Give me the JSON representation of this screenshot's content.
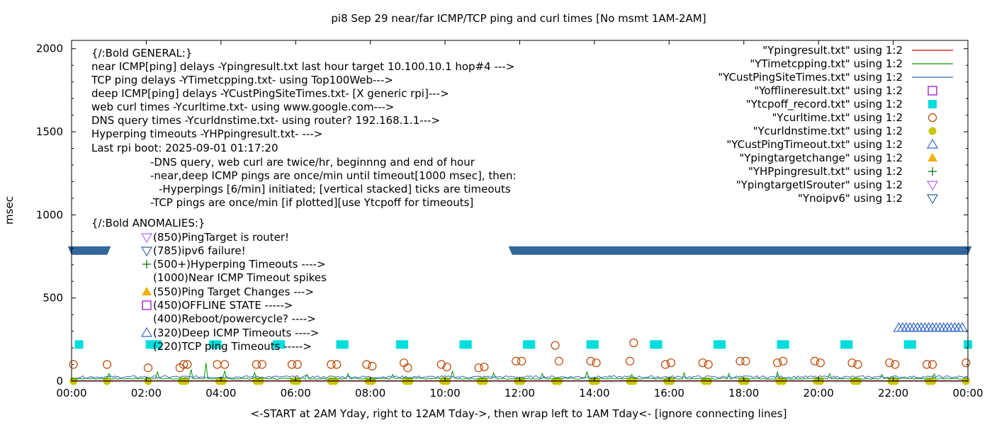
{
  "chart_data": {
    "type": "scatter",
    "title": "pi8 Sep 29  near/far ICMP/TCP ping and curl times [No msmt 1AM-2AM]",
    "xlabel": "<-START at 2AM Yday, right to 12AM Tday->, then wrap left to 1AM Tday<- [ignore connecting lines]",
    "ylabel": "msec",
    "xlim": [
      0,
      24
    ],
    "ylim": [
      0,
      2050
    ],
    "grid": false,
    "legend_position": "top-right",
    "x_ticks": [
      {
        "value": 0,
        "label": "00:00"
      },
      {
        "value": 2,
        "label": "02:00"
      },
      {
        "value": 4,
        "label": "04:00"
      },
      {
        "value": 6,
        "label": "06:00"
      },
      {
        "value": 8,
        "label": "08:00"
      },
      {
        "value": 10,
        "label": "10:00"
      },
      {
        "value": 12,
        "label": "12:00"
      },
      {
        "value": 14,
        "label": "14:00"
      },
      {
        "value": 16,
        "label": "16:00"
      },
      {
        "value": 18,
        "label": "18:00"
      },
      {
        "value": 20,
        "label": "20:00"
      },
      {
        "value": 22,
        "label": "22:00"
      },
      {
        "value": 24,
        "label": "00:00"
      }
    ],
    "y_ticks": [
      {
        "value": 0,
        "label": "0"
      },
      {
        "value": 500,
        "label": "500"
      },
      {
        "value": 1000,
        "label": "1000"
      },
      {
        "value": 1500,
        "label": "1500"
      },
      {
        "value": 2000,
        "label": "2000"
      }
    ],
    "annotation_lines": [
      "{/:Bold GENERAL:}",
      "near ICMP[ping] delays -Ypingresult.txt last hour target 10.100.10.1 hop#4 --->",
      "TCP ping delays -YTimetcpping.txt- using Top100Web--->",
      "deep ICMP[ping] delays -YCustPingSiteTimes.txt- [X generic rpi]--->",
      "web curl times -Ycurltime.txt- using www.google.com--->",
      "DNS query times -Ycurldnstime.txt- using router? 192.168.1.1--->",
      "Hyperping timeouts -YHPpingresult.txt- --->",
      "Last rpi boot: 2025-09-01 01:17:20",
      "-DNS query, web curl are twice/hr, beginnng and end of hour",
      "-near,deep ICMP pings are once/min until timeout[1000 msec], then:",
      "-Hyperpings [6/min] initiated; [vertical stacked] ticks are timeouts",
      "-TCP pings are once/min [if plotted][use Ytcpoff for timeouts]",
      "{/:Bold ANOMALIES:}",
      "(850)PingTarget is router!",
      "(785)ipv6 failure!",
      "(500+)Hyperping Timeouts ---->",
      "(1000)Near ICMP Timeout spikes",
      "(550)Ping Target Changes --->",
      "(450)OFFLINE STATE ----->",
      "(400)Reboot/powercycle? ---->",
      "(320)Deep ICMP Timeouts ---->",
      "(220)TCP ping Timeouts ----->"
    ],
    "series": [
      {
        "name": "\"Ypingresult.txt\" using 1:2",
        "color": "#cc0000",
        "style": "line",
        "baseline_msec": 2
      },
      {
        "name": "\"YTimetcpping.txt\" using 1:2",
        "color": "#009900",
        "style": "line",
        "baseline_msec": 15,
        "spikes": [
          [
            1.0,
            45
          ],
          [
            2.3,
            55
          ],
          [
            3.2,
            70
          ],
          [
            3.6,
            110
          ],
          [
            4.1,
            60
          ],
          [
            4.9,
            50
          ],
          [
            6.3,
            40
          ],
          [
            7.4,
            45
          ],
          [
            8.6,
            40
          ],
          [
            10.2,
            60
          ],
          [
            11.3,
            50
          ],
          [
            12.6,
            45
          ],
          [
            13.8,
            55
          ],
          [
            15.0,
            40
          ],
          [
            16.4,
            50
          ],
          [
            17.6,
            45
          ],
          [
            18.9,
            55
          ],
          [
            20.3,
            45
          ],
          [
            21.7,
            40
          ],
          [
            23.1,
            45
          ]
        ]
      },
      {
        "name": "\"YCustPingSiteTimes.txt\" using 1:2",
        "color": "#3366cc",
        "style": "line",
        "baseline_msec": 25,
        "x_range": [
          0.1,
          24
        ]
      },
      {
        "name": "\"Yofflineresult.txt\" using 1:2",
        "color": "#9900cc",
        "marker": "open-square",
        "points": []
      },
      {
        "name": "\"Ytcpoff_record.txt\" using 1:2",
        "color": "#00dddd",
        "marker": "filled-square",
        "points": [
          [
            0.2,
            220
          ],
          [
            2.1,
            220
          ],
          [
            2.2,
            220
          ],
          [
            2.3,
            220
          ],
          [
            3.8,
            220
          ],
          [
            3.9,
            220
          ],
          [
            5.5,
            220
          ],
          [
            5.6,
            220
          ],
          [
            7.2,
            220
          ],
          [
            7.3,
            220
          ],
          [
            8.8,
            220
          ],
          [
            8.9,
            220
          ],
          [
            10.5,
            220
          ],
          [
            10.6,
            220
          ],
          [
            12.2,
            220
          ],
          [
            12.3,
            220
          ],
          [
            13.9,
            220
          ],
          [
            14.0,
            220
          ],
          [
            15.6,
            220
          ],
          [
            15.7,
            220
          ],
          [
            17.3,
            220
          ],
          [
            17.4,
            220
          ],
          [
            19.0,
            220
          ],
          [
            19.1,
            220
          ],
          [
            20.7,
            220
          ],
          [
            20.8,
            220
          ],
          [
            22.4,
            220
          ],
          [
            22.5,
            220
          ],
          [
            24.0,
            220
          ]
        ]
      },
      {
        "name": "\"Ycurltime.txt\" using 1:2",
        "color": "#bb4400",
        "marker": "open-circle",
        "points": [
          [
            0.05,
            100
          ],
          [
            0.95,
            100
          ],
          [
            2.05,
            80
          ],
          [
            2.9,
            80
          ],
          [
            3.0,
            100
          ],
          [
            3.1,
            100
          ],
          [
            3.9,
            100
          ],
          [
            4.1,
            100
          ],
          [
            4.95,
            100
          ],
          [
            5.1,
            100
          ],
          [
            5.9,
            100
          ],
          [
            6.05,
            100
          ],
          [
            6.95,
            100
          ],
          [
            7.1,
            100
          ],
          [
            7.9,
            100
          ],
          [
            8.05,
            90
          ],
          [
            8.9,
            110
          ],
          [
            9.0,
            80
          ],
          [
            9.9,
            100
          ],
          [
            10.05,
            85
          ],
          [
            10.9,
            80
          ],
          [
            11.05,
            85
          ],
          [
            11.9,
            120
          ],
          [
            12.05,
            120
          ],
          [
            12.95,
            215
          ],
          [
            13.05,
            120
          ],
          [
            13.9,
            120
          ],
          [
            14.05,
            110
          ],
          [
            14.95,
            120
          ],
          [
            15.05,
            230
          ],
          [
            15.9,
            100
          ],
          [
            16.05,
            110
          ],
          [
            16.9,
            110
          ],
          [
            17.05,
            100
          ],
          [
            17.9,
            120
          ],
          [
            18.05,
            120
          ],
          [
            18.9,
            110
          ],
          [
            19.05,
            120
          ],
          [
            19.9,
            120
          ],
          [
            20.05,
            110
          ],
          [
            20.9,
            110
          ],
          [
            21.05,
            100
          ],
          [
            21.9,
            110
          ],
          [
            22.05,
            100
          ],
          [
            22.9,
            100
          ],
          [
            23.05,
            100
          ],
          [
            23.95,
            110
          ]
        ]
      },
      {
        "name": "\"Ycurldnstime.txt\" using 1:2",
        "color": "#c8c800",
        "marker": "filled-circle",
        "points": [
          [
            0.05,
            0
          ],
          [
            0.95,
            0
          ],
          [
            2.05,
            0
          ],
          [
            2.95,
            0
          ],
          [
            3.05,
            0
          ],
          [
            3.95,
            0
          ],
          [
            4.05,
            0
          ],
          [
            4.95,
            0
          ],
          [
            5.05,
            0
          ],
          [
            5.95,
            0
          ],
          [
            6.05,
            0
          ],
          [
            6.95,
            0
          ],
          [
            7.05,
            0
          ],
          [
            7.95,
            0
          ],
          [
            8.05,
            0
          ],
          [
            8.95,
            0
          ],
          [
            9.05,
            0
          ],
          [
            9.95,
            0
          ],
          [
            10.05,
            0
          ],
          [
            10.95,
            0
          ],
          [
            11.05,
            0
          ],
          [
            11.95,
            0
          ],
          [
            12.05,
            0
          ],
          [
            12.95,
            0
          ],
          [
            13.05,
            0
          ],
          [
            13.95,
            0
          ],
          [
            14.05,
            0
          ],
          [
            14.95,
            0
          ],
          [
            15.05,
            0
          ],
          [
            15.95,
            0
          ],
          [
            16.05,
            0
          ],
          [
            16.95,
            0
          ],
          [
            17.05,
            0
          ],
          [
            17.95,
            0
          ],
          [
            18.05,
            0
          ],
          [
            18.95,
            0
          ],
          [
            19.05,
            0
          ],
          [
            19.95,
            0
          ],
          [
            20.05,
            0
          ],
          [
            20.95,
            0
          ],
          [
            21.05,
            0
          ],
          [
            21.95,
            0
          ],
          [
            22.05,
            0
          ],
          [
            22.95,
            0
          ],
          [
            23.05,
            0
          ],
          [
            23.95,
            0
          ]
        ]
      },
      {
        "name": "\"YCustPingTimeout.txt\" using 1:2",
        "color": "#3366cc",
        "marker": "open-triangle-up",
        "points": [
          [
            22.15,
            320
          ],
          [
            22.25,
            320
          ],
          [
            22.35,
            320
          ],
          [
            22.45,
            320
          ],
          [
            22.55,
            320
          ],
          [
            22.65,
            320
          ],
          [
            22.75,
            320
          ],
          [
            22.85,
            320
          ],
          [
            22.95,
            320
          ],
          [
            23.05,
            320
          ],
          [
            23.15,
            320
          ],
          [
            23.25,
            320
          ],
          [
            23.35,
            320
          ],
          [
            23.45,
            320
          ],
          [
            23.55,
            320
          ],
          [
            23.65,
            320
          ],
          [
            23.75,
            320
          ],
          [
            23.85,
            320
          ]
        ]
      },
      {
        "name": "\"Ypingtargetchange\" using 1:2",
        "color": "#f0b000",
        "marker": "filled-triangle-up",
        "points": []
      },
      {
        "name": "\"YHPpingresult.txt\" using 1:2",
        "color": "#006600",
        "marker": "plus",
        "points": []
      },
      {
        "name": "\"YpingtargetISrouter\" using 1:2",
        "color": "#b366ff",
        "marker": "open-triangle-down",
        "points": []
      },
      {
        "name": "\"Ynoipv6\" using 1:2",
        "color": "#336699",
        "marker": "open-triangle-down",
        "dense_band": true,
        "value_msec": 785,
        "x_ranges": [
          [
            -0.1,
            1.05
          ],
          [
            11.7,
            24.1
          ]
        ]
      }
    ]
  }
}
